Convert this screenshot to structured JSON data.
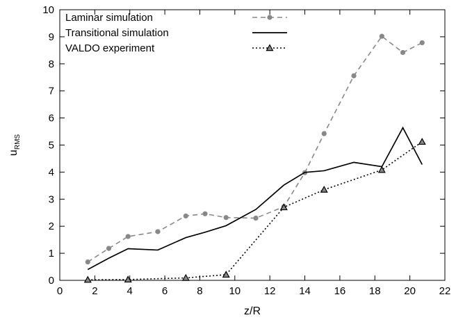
{
  "chart_data": {
    "type": "line",
    "xlabel": "z/R",
    "ylabel": "u",
    "ylabel_sub": "RMS",
    "xlim": [
      0,
      22
    ],
    "ylim": [
      0,
      10
    ],
    "xticks": [
      "0",
      "2",
      "4",
      "6",
      "8",
      "10",
      "12",
      "14",
      "16",
      "18",
      "20",
      "22"
    ],
    "yticks": [
      "0",
      "1",
      "2",
      "3",
      "4",
      "5",
      "6",
      "7",
      "8",
      "9",
      "10"
    ],
    "grid": false,
    "legend_position": "top-left",
    "series": [
      {
        "name": "Laminar simulation",
        "color": "#888888",
        "line_style": "dashed",
        "marker": "circle",
        "x": [
          1.6,
          2.8,
          3.9,
          5.6,
          7.2,
          8.3,
          9.5,
          11.2,
          12.8,
          14.0,
          15.1,
          16.8,
          18.4,
          19.6,
          20.7
        ],
        "y": [
          0.68,
          1.18,
          1.62,
          1.8,
          2.38,
          2.46,
          2.32,
          2.3,
          2.72,
          3.98,
          5.42,
          7.56,
          9.02,
          8.42,
          8.78
        ]
      },
      {
        "name": "Transitional simulation",
        "color": "#000000",
        "line_style": "solid",
        "marker": "none",
        "x": [
          1.6,
          2.8,
          3.9,
          5.6,
          7.2,
          8.3,
          9.5,
          11.2,
          12.8,
          14.0,
          15.1,
          16.8,
          18.4,
          19.6,
          20.7
        ],
        "y": [
          0.4,
          0.82,
          1.17,
          1.12,
          1.58,
          1.78,
          2.02,
          2.62,
          3.52,
          3.99,
          4.05,
          4.36,
          4.2,
          5.64,
          4.28
        ]
      },
      {
        "name": "VALDO experiment",
        "color": "#000000",
        "line_style": "dotted",
        "marker": "triangle",
        "x": [
          1.6,
          3.9,
          7.2,
          9.5,
          12.8,
          15.1,
          18.4,
          20.7
        ],
        "y": [
          0.02,
          0.03,
          0.09,
          0.21,
          2.7,
          3.35,
          4.08,
          5.12
        ]
      }
    ]
  }
}
